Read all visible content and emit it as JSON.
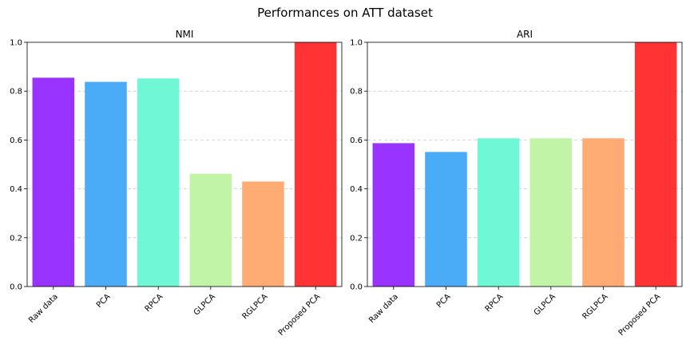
{
  "figure": {
    "title": "Performances on ATT dataset"
  },
  "chart_data": [
    {
      "type": "bar",
      "title": "NMI",
      "xlabel": "",
      "ylabel": "",
      "categories": [
        "Raw data",
        "PCA",
        "RPCA",
        "GLPCA",
        "RGLPCA",
        "Proposed PCA"
      ],
      "values": [
        0.855,
        0.838,
        0.852,
        0.462,
        0.43,
        1.0
      ],
      "colors": [
        "#9933ff",
        "#4aabf7",
        "#6ff7d6",
        "#c2f4a8",
        "#ffab73",
        "#ff3333"
      ],
      "ylim": [
        0,
        1.0
      ],
      "yticks": [
        "0.0",
        "0.2",
        "0.4",
        "0.6",
        "0.8",
        "1.0"
      ],
      "grid": "y, dashed",
      "legend": "none"
    },
    {
      "type": "bar",
      "title": "ARI",
      "xlabel": "",
      "ylabel": "",
      "categories": [
        "Raw data",
        "PCA",
        "RPCA",
        "GLPCA",
        "RGLPCA",
        "Proposed PCA"
      ],
      "values": [
        0.587,
        0.551,
        0.607,
        0.607,
        0.607,
        1.0
      ],
      "colors": [
        "#9933ff",
        "#4aabf7",
        "#6ff7d6",
        "#c2f4a8",
        "#ffab73",
        "#ff3333"
      ],
      "ylim": [
        0,
        1.0
      ],
      "yticks": [
        "0.0",
        "0.2",
        "0.4",
        "0.6",
        "0.8",
        "1.0"
      ],
      "grid": "y, dashed",
      "legend": "none"
    }
  ]
}
